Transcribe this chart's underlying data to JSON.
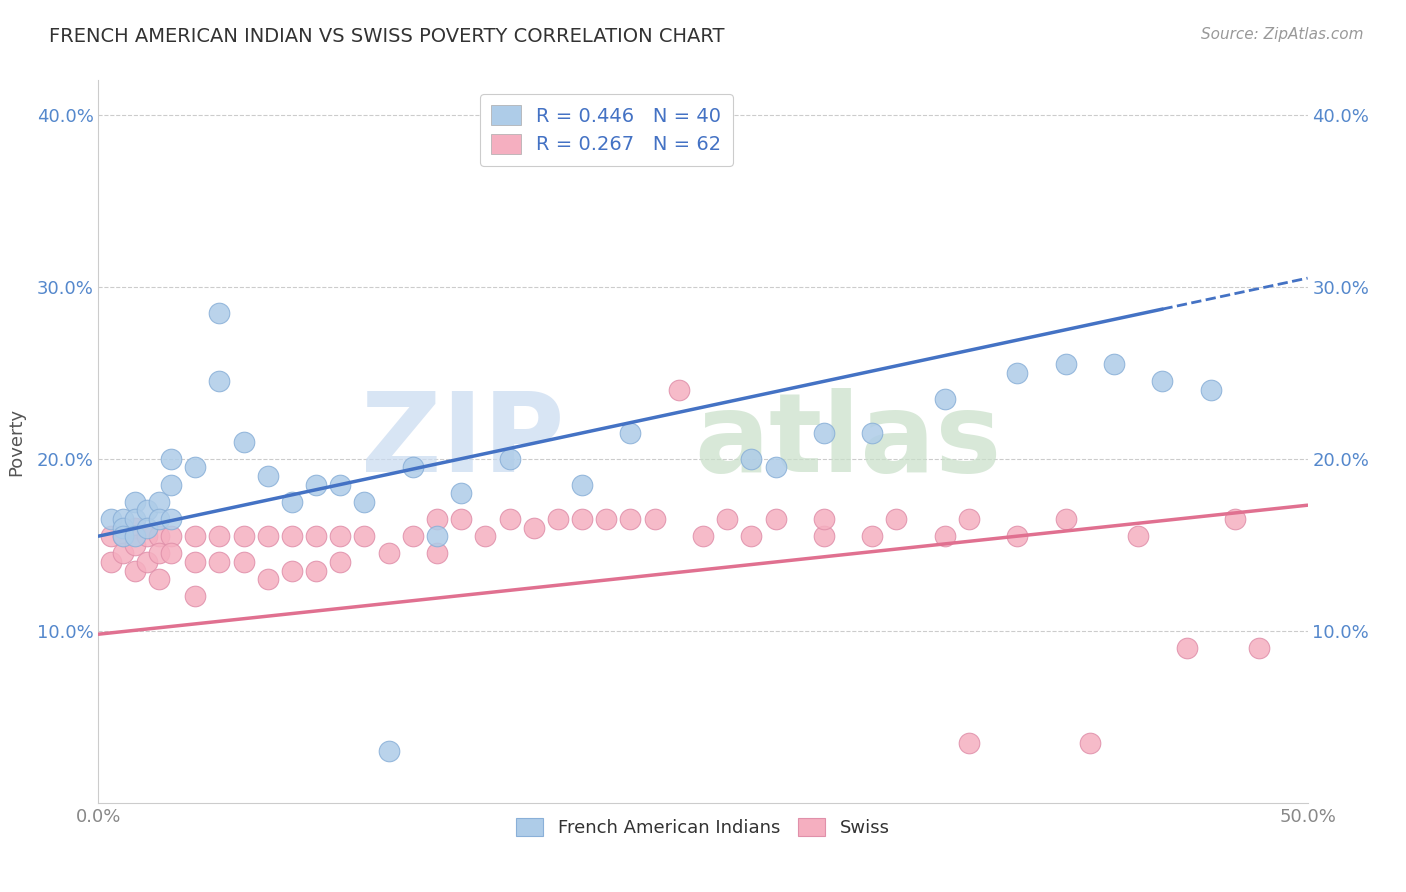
{
  "title": "FRENCH AMERICAN INDIAN VS SWISS POVERTY CORRELATION CHART",
  "source": "Source: ZipAtlas.com",
  "ylabel": "Poverty",
  "xlim": [
    0.0,
    0.5
  ],
  "ylim": [
    0.0,
    0.42
  ],
  "yticks": [
    0.1,
    0.2,
    0.3,
    0.4
  ],
  "ytick_labels": [
    "10.0%",
    "20.0%",
    "30.0%",
    "40.0%"
  ],
  "xticks": [
    0.0,
    0.1,
    0.2,
    0.3,
    0.4,
    0.5
  ],
  "xtick_labels": [
    "0.0%",
    "",
    "",
    "",
    "",
    "50.0%"
  ],
  "blue_R": 0.446,
  "blue_N": 40,
  "pink_R": 0.267,
  "pink_N": 62,
  "blue_color": "#aecce8",
  "pink_color": "#f5afc0",
  "blue_line_color": "#4472c4",
  "pink_line_color": "#e07090",
  "legend_label_blue": "French American Indians",
  "legend_label_pink": "Swiss",
  "blue_line_x0": 0.0,
  "blue_line_y0": 0.155,
  "blue_line_x1": 0.5,
  "blue_line_y1": 0.305,
  "blue_line_solid_end": 0.44,
  "pink_line_x0": 0.0,
  "pink_line_y0": 0.098,
  "pink_line_x1": 0.5,
  "pink_line_y1": 0.173,
  "blue_scatter_x": [
    0.005,
    0.01,
    0.01,
    0.01,
    0.015,
    0.015,
    0.015,
    0.02,
    0.02,
    0.025,
    0.025,
    0.03,
    0.03,
    0.03,
    0.04,
    0.05,
    0.05,
    0.06,
    0.07,
    0.08,
    0.09,
    0.1,
    0.11,
    0.13,
    0.14,
    0.15,
    0.17,
    0.2,
    0.22,
    0.27,
    0.28,
    0.3,
    0.32,
    0.35,
    0.38,
    0.4,
    0.42,
    0.44,
    0.46,
    0.12
  ],
  "blue_scatter_y": [
    0.165,
    0.165,
    0.16,
    0.155,
    0.175,
    0.165,
    0.155,
    0.17,
    0.16,
    0.175,
    0.165,
    0.2,
    0.185,
    0.165,
    0.195,
    0.285,
    0.245,
    0.21,
    0.19,
    0.175,
    0.185,
    0.185,
    0.175,
    0.195,
    0.155,
    0.18,
    0.2,
    0.185,
    0.215,
    0.2,
    0.195,
    0.215,
    0.215,
    0.235,
    0.25,
    0.255,
    0.255,
    0.245,
    0.24,
    0.03
  ],
  "pink_scatter_x": [
    0.005,
    0.005,
    0.01,
    0.01,
    0.015,
    0.015,
    0.015,
    0.02,
    0.02,
    0.025,
    0.025,
    0.025,
    0.03,
    0.03,
    0.04,
    0.04,
    0.04,
    0.05,
    0.05,
    0.06,
    0.06,
    0.07,
    0.07,
    0.08,
    0.08,
    0.09,
    0.09,
    0.1,
    0.1,
    0.11,
    0.12,
    0.13,
    0.14,
    0.14,
    0.15,
    0.16,
    0.17,
    0.18,
    0.19,
    0.2,
    0.21,
    0.22,
    0.23,
    0.24,
    0.25,
    0.26,
    0.27,
    0.28,
    0.3,
    0.3,
    0.32,
    0.33,
    0.35,
    0.36,
    0.38,
    0.4,
    0.43,
    0.45,
    0.47,
    0.48,
    0.36,
    0.41
  ],
  "pink_scatter_y": [
    0.155,
    0.14,
    0.155,
    0.145,
    0.16,
    0.15,
    0.135,
    0.155,
    0.14,
    0.155,
    0.145,
    0.13,
    0.155,
    0.145,
    0.155,
    0.14,
    0.12,
    0.155,
    0.14,
    0.155,
    0.14,
    0.155,
    0.13,
    0.155,
    0.135,
    0.155,
    0.135,
    0.155,
    0.14,
    0.155,
    0.145,
    0.155,
    0.165,
    0.145,
    0.165,
    0.155,
    0.165,
    0.16,
    0.165,
    0.165,
    0.165,
    0.165,
    0.165,
    0.24,
    0.155,
    0.165,
    0.155,
    0.165,
    0.155,
    0.165,
    0.155,
    0.165,
    0.155,
    0.165,
    0.155,
    0.165,
    0.155,
    0.09,
    0.165,
    0.09,
    0.035,
    0.035
  ]
}
